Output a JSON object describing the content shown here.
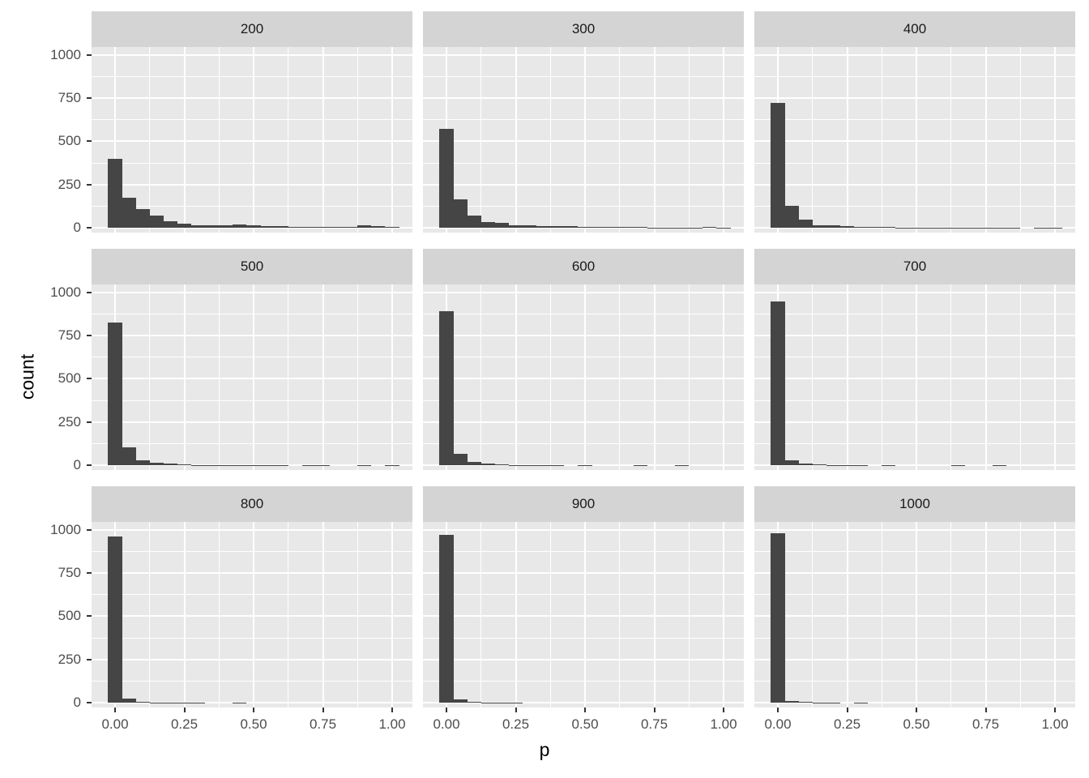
{
  "chart_data": {
    "type": "bar",
    "subtype": "faceted-histogram-grid-3x3",
    "title": "",
    "xlabel": "p",
    "ylabel": "count",
    "legend_position": "none",
    "grid": "white major and minor gridlines on grey panel",
    "xlim": [
      -0.09,
      1.07
    ],
    "ylim": [
      0,
      1050
    ],
    "x_tick_labels": [
      "0.00",
      "0.25",
      "0.50",
      "0.75",
      "1.00"
    ],
    "x_tick_values": [
      0,
      0.25,
      0.5,
      0.75,
      1.0
    ],
    "x_minor_values": [
      0.125,
      0.375,
      0.625,
      0.875
    ],
    "y_tick_labels": [
      "1000",
      "750",
      "500",
      "250",
      "0"
    ],
    "y_tick_values": [
      1000,
      750,
      500,
      250,
      0
    ],
    "y_minor_values": [
      125,
      375,
      625,
      875
    ],
    "bin_width": 0.05,
    "bin_centers": [
      0.0,
      0.05,
      0.1,
      0.15,
      0.2,
      0.25,
      0.3,
      0.35,
      0.4,
      0.45,
      0.5,
      0.55,
      0.6,
      0.65,
      0.7,
      0.75,
      0.8,
      0.85,
      0.9,
      0.95,
      1.0
    ],
    "facets": [
      {
        "label": "200",
        "counts": [
          400,
          175,
          110,
          68,
          38,
          22,
          16,
          16,
          14,
          18,
          12,
          10,
          8,
          6,
          5,
          4,
          4,
          4,
          13,
          8,
          4
        ]
      },
      {
        "label": "300",
        "counts": [
          570,
          165,
          72,
          34,
          27,
          15,
          14,
          11,
          9,
          11,
          6,
          5,
          4,
          3,
          3,
          2,
          2,
          2,
          2,
          6,
          2
        ]
      },
      {
        "label": "400",
        "counts": [
          720,
          125,
          45,
          16,
          15,
          8,
          6,
          6,
          3,
          2,
          2,
          2,
          1,
          1,
          2,
          1,
          1,
          1,
          0,
          1,
          1
        ]
      },
      {
        "label": "500",
        "counts": [
          825,
          105,
          30,
          14,
          8,
          4,
          2,
          2,
          1,
          1,
          1,
          1,
          1,
          0,
          1,
          1,
          0,
          0,
          1,
          0,
          1
        ]
      },
      {
        "label": "600",
        "counts": [
          890,
          65,
          19,
          8,
          4,
          2,
          2,
          1,
          1,
          0,
          1,
          0,
          0,
          0,
          1,
          0,
          0,
          1,
          0,
          0,
          0
        ]
      },
      {
        "label": "700",
        "counts": [
          945,
          30,
          8,
          3,
          2,
          1,
          1,
          0,
          1,
          0,
          0,
          0,
          0,
          1,
          0,
          0,
          1,
          0,
          0,
          0,
          0
        ]
      },
      {
        "label": "800",
        "counts": [
          960,
          25,
          6,
          2,
          1,
          1,
          1,
          0,
          0,
          1,
          0,
          0,
          0,
          0,
          0,
          0,
          0,
          0,
          0,
          0,
          0
        ]
      },
      {
        "label": "900",
        "counts": [
          970,
          18,
          5,
          2,
          1,
          1,
          0,
          0,
          0,
          0,
          0,
          0,
          0,
          0,
          0,
          0,
          0,
          0,
          0,
          0,
          0
        ]
      },
      {
        "label": "1000",
        "counts": [
          980,
          8,
          3,
          1,
          1,
          0,
          1,
          0,
          0,
          0,
          0,
          0,
          0,
          0,
          0,
          0,
          0,
          0,
          0,
          0,
          0
        ]
      }
    ]
  },
  "colors": {
    "bar_fill": "#454545",
    "panel_background": "#e8e8e8",
    "strip_background": "#d4d4d4",
    "gridline": "#ffffff",
    "tick_mark": "#333333",
    "tick_label": "#4d4d4d",
    "strip_text": "#1a1a1a",
    "axis_title": "#000000",
    "figure_background": "#ffffff"
  }
}
